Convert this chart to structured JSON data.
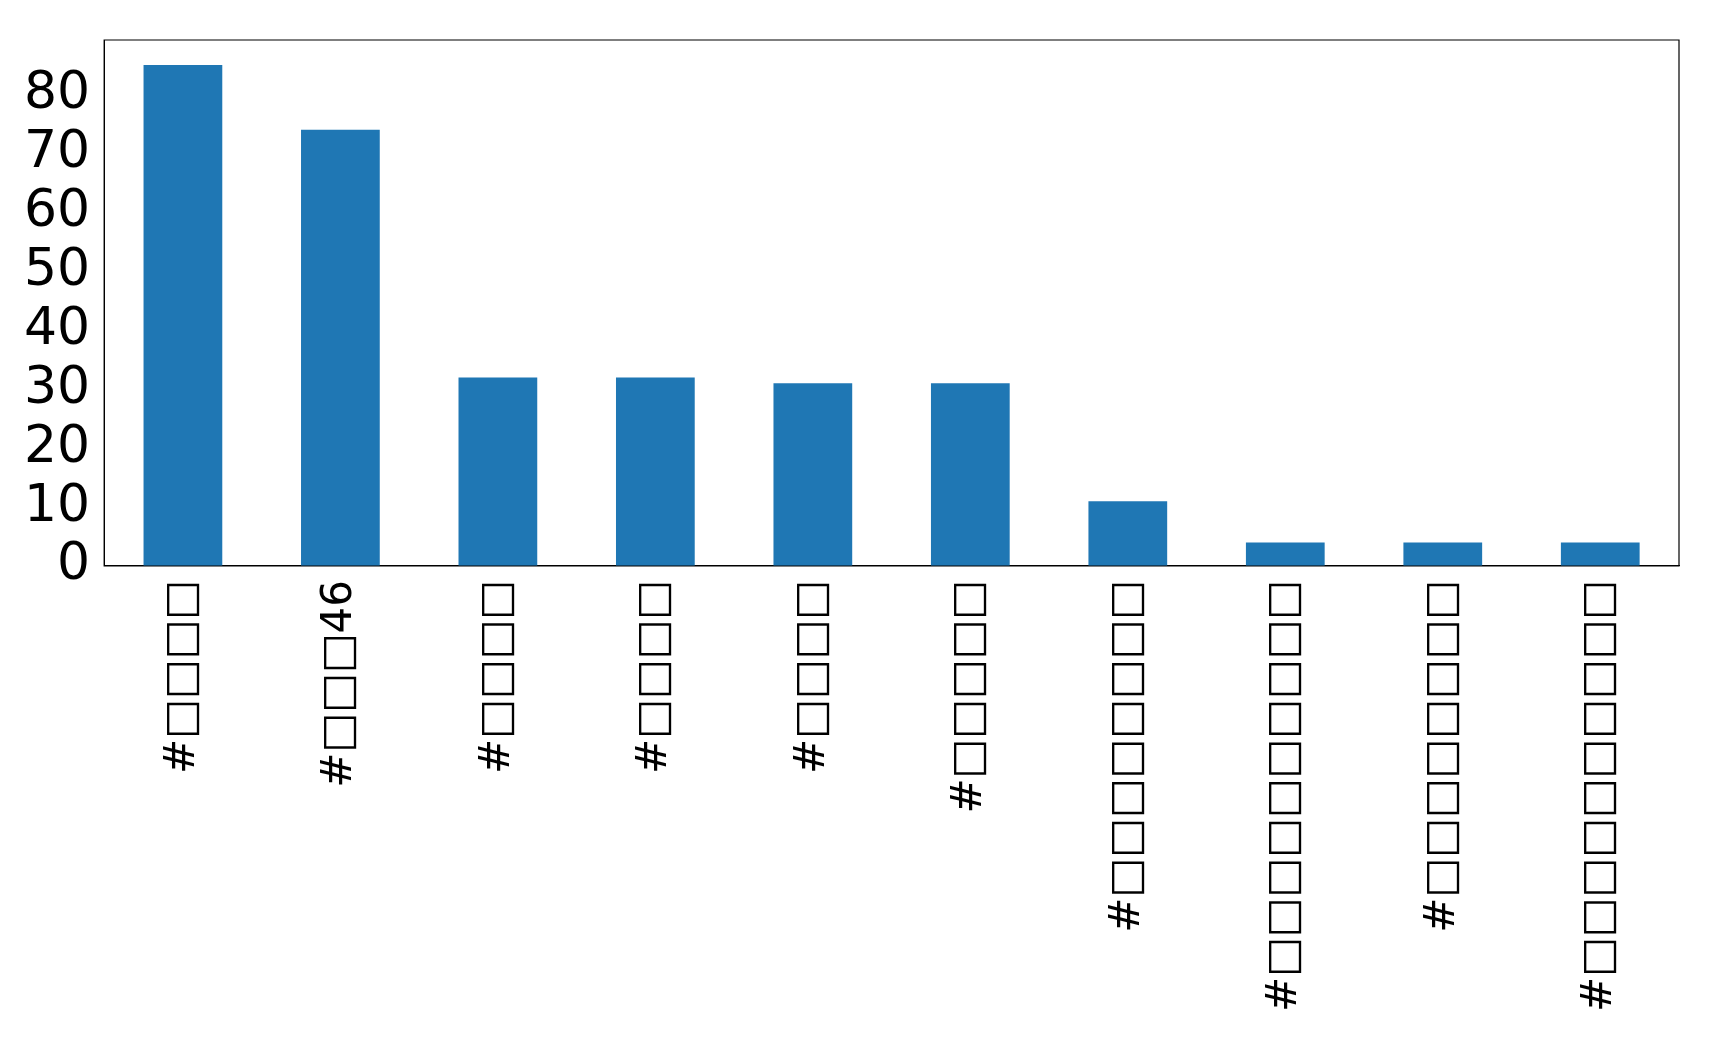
{
  "chart_data": {
    "type": "bar",
    "categories": [
      "#□□□□",
      "#□□□46",
      "#□□□□",
      "#□□□□",
      "#□□□□",
      "#□□□□□",
      "#□□□□□□□□",
      "#□□□□□□□□□□",
      "#□□□□□□□□",
      "#□□□□□□□□□□"
    ],
    "values": [
      85,
      74,
      32,
      32,
      31,
      31,
      11,
      4,
      4,
      4
    ],
    "color": "#1f77b4",
    "ylim": [
      0,
      89.25
    ],
    "yticks": [
      0,
      10,
      20,
      30,
      40,
      50,
      60,
      70,
      80
    ],
    "grid": false,
    "legend": false
  }
}
